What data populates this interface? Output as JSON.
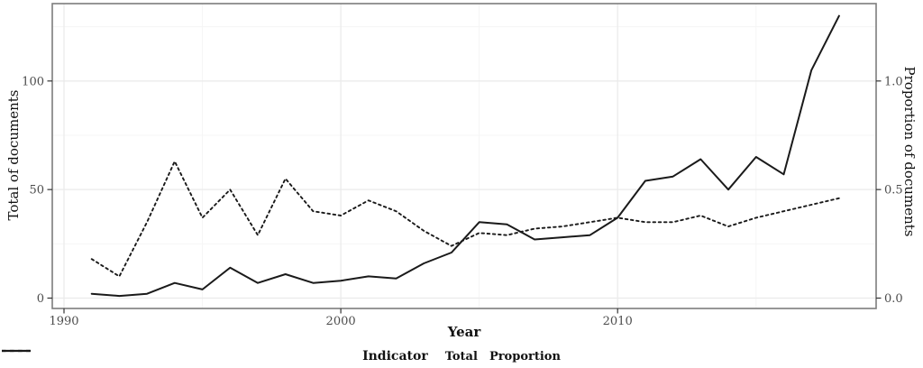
{
  "chart_data": {
    "type": "line",
    "xlabel": "Year",
    "ylabel_left": "Total of documents",
    "ylabel_right": "Proportion of documents",
    "legend_title": "Indicator",
    "x": [
      1991,
      1992,
      1993,
      1994,
      1995,
      1996,
      1997,
      1998,
      1999,
      2000,
      2001,
      2002,
      2003,
      2004,
      2005,
      2006,
      2007,
      2008,
      2009,
      2010,
      2011,
      2012,
      2013,
      2014,
      2015,
      2016,
      2017,
      2018
    ],
    "series": [
      {
        "name": "Total",
        "axis": "left",
        "style": "solid",
        "values": [
          2,
          1,
          2,
          7,
          4,
          14,
          7,
          11,
          7,
          8,
          10,
          9,
          16,
          21,
          35,
          34,
          27,
          28,
          29,
          37,
          54,
          56,
          64,
          50,
          65,
          57,
          105,
          130
        ]
      },
      {
        "name": "Proportion",
        "axis": "right",
        "style": "dashed",
        "values": [
          0.18,
          0.1,
          0.35,
          0.63,
          0.37,
          0.5,
          0.29,
          0.55,
          0.4,
          0.38,
          0.45,
          0.4,
          0.31,
          0.24,
          0.3,
          0.29,
          0.32,
          0.33,
          0.35,
          0.37,
          0.35,
          0.35,
          0.38,
          0.33,
          0.37,
          0.4,
          0.43,
          0.46
        ]
      }
    ],
    "x_axis": {
      "major_ticks": [
        {
          "v": 1990,
          "label": "1990"
        },
        {
          "v": 2000,
          "label": "2000"
        },
        {
          "v": 2010,
          "label": "2010"
        }
      ],
      "minor_ticks": [
        1995,
        2005,
        2015
      ],
      "range": [
        1989.6,
        2019.3
      ]
    },
    "y_axis_left": {
      "major_ticks": [
        {
          "v": 0,
          "label": "0"
        },
        {
          "v": 50,
          "label": "50"
        },
        {
          "v": 100,
          "label": "100"
        }
      ],
      "minor_ticks": [
        25,
        75,
        125
      ],
      "range": [
        -5,
        135.6
      ]
    },
    "y_axis_right": {
      "major_ticks": [
        {
          "v": 0.0,
          "label": "0.0"
        },
        {
          "v": 0.5,
          "label": "0.5"
        },
        {
          "v": 1.0,
          "label": "1.0"
        }
      ],
      "range": [
        -0.05,
        1.356
      ]
    },
    "grid": true,
    "legend_position": "bottom"
  },
  "colors": {
    "line": "#1a1a1a",
    "grid_major": "#ebebeb",
    "grid_minor": "#f5f5f5",
    "panel_border": "#7d7d7d",
    "tick_mark": "#333333",
    "tick_label": "#4d4d4d",
    "axis_title": "#111111",
    "background": "#ffffff"
  }
}
